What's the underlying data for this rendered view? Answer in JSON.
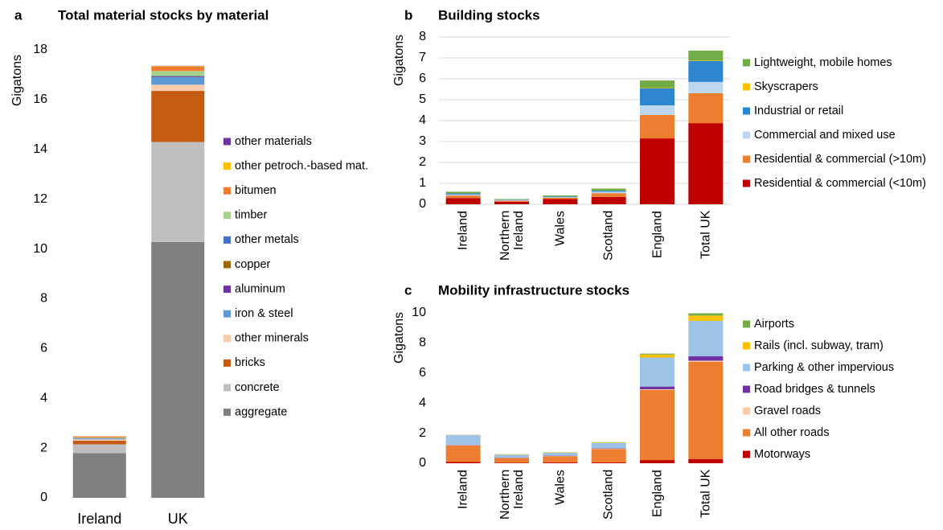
{
  "chart_data": [
    {
      "type": "stacked_bar",
      "panel": "a",
      "title": "Total material stocks by material",
      "y_label": "Gigatons",
      "categories": [
        "Ireland",
        "UK"
      ],
      "series": [
        {
          "name": "aggregate",
          "color": "#7f7f7f",
          "values": [
            1.8,
            10.28
          ]
        },
        {
          "name": "concrete",
          "color": "#bfbfbf",
          "values": [
            0.35,
            4.02
          ]
        },
        {
          "name": "bricks",
          "color": "#c55a11",
          "values": [
            0.15,
            2.05
          ]
        },
        {
          "name": "other minerals",
          "color": "#f8cbad",
          "values": [
            0.05,
            0.25
          ]
        },
        {
          "name": "iron & steel",
          "color": "#5b9bd5",
          "values": [
            0.03,
            0.3
          ]
        },
        {
          "name": "aluminum",
          "color": "#7030a0",
          "values": [
            0,
            0.02
          ]
        },
        {
          "name": "copper",
          "color": "#9c6500",
          "values": [
            0,
            0.01
          ]
        },
        {
          "name": "other metals",
          "color": "#4472c4",
          "values": [
            0.01,
            0.02
          ]
        },
        {
          "name": "timber",
          "color": "#a9d18e",
          "values": [
            0.03,
            0.2
          ]
        },
        {
          "name": "bitumen",
          "color": "#ed7d31",
          "values": [
            0.05,
            0.18
          ]
        },
        {
          "name": "other petroch.-based mat.",
          "color": "#ffc000",
          "values": [
            0,
            0.02
          ]
        },
        {
          "name": "other materials",
          "color": "#7030a0",
          "values": [
            0,
            0.01
          ]
        }
      ],
      "ylim": [
        0,
        18
      ],
      "yticks": [
        0,
        2,
        4,
        6,
        8,
        10,
        12,
        14,
        16,
        18
      ],
      "grid": false
    },
    {
      "type": "stacked_bar",
      "panel": "b",
      "title": "Building stocks",
      "y_label": "Gigatons",
      "categories": [
        "Ireland",
        "Northern Ireland",
        "Wales",
        "Scotland",
        "England",
        "Total UK"
      ],
      "series": [
        {
          "name": "Residential & commercial (<10m)",
          "color": "#c00000",
          "values": [
            0.3,
            0.12,
            0.25,
            0.35,
            3.15,
            3.88
          ]
        },
        {
          "name": "Residential & commercial (>10m)",
          "color": "#ed7d31",
          "values": [
            0.12,
            0.05,
            0.06,
            0.18,
            1.12,
            1.43
          ]
        },
        {
          "name": "Commercial and mixed use",
          "color": "#bdd7ee",
          "values": [
            0.05,
            0.03,
            0.03,
            0.07,
            0.46,
            0.54
          ]
        },
        {
          "name": "Industrial or retail",
          "color": "#2e86d0",
          "values": [
            0.05,
            0.02,
            0.03,
            0.05,
            0.81,
            1.0
          ]
        },
        {
          "name": "Skyscrapers",
          "color": "#ffc000",
          "values": [
            0,
            0,
            0,
            0,
            0.02,
            0.02
          ]
        },
        {
          "name": "Lightweight, mobile homes",
          "color": "#70ad47",
          "values": [
            0.08,
            0.03,
            0.05,
            0.1,
            0.36,
            0.48
          ]
        }
      ],
      "ylim": [
        0,
        8
      ],
      "yticks": [
        0,
        1,
        2,
        3,
        4,
        5,
        6,
        7,
        8
      ],
      "grid": true
    },
    {
      "type": "stacked_bar",
      "panel": "c",
      "title": "Mobility infrastructure stocks",
      "y_label": "Gigatons",
      "categories": [
        "Ireland",
        "Northern Ireland",
        "Wales",
        "Scotland",
        "England",
        "Total UK"
      ],
      "series": [
        {
          "name": "Motorways",
          "color": "#c00000",
          "values": [
            0.08,
            0.03,
            0.05,
            0.05,
            0.21,
            0.28
          ]
        },
        {
          "name": "All other roads",
          "color": "#ed7d31",
          "values": [
            1.1,
            0.32,
            0.42,
            0.9,
            4.66,
            6.46
          ]
        },
        {
          "name": "Gravel roads",
          "color": "#f8cbad",
          "values": [
            0.02,
            0.01,
            0.01,
            0.02,
            0.05,
            0.08
          ]
        },
        {
          "name": "Road bridges & tunnels",
          "color": "#7030a0",
          "values": [
            0.02,
            0.01,
            0.02,
            0.03,
            0.18,
            0.29
          ]
        },
        {
          "name": "Parking & other impervious",
          "color": "#9dc3e6",
          "values": [
            0.65,
            0.2,
            0.2,
            0.35,
            1.93,
            2.36
          ]
        },
        {
          "name": "Rails (incl. subway, tram)",
          "color": "#ffc000",
          "values": [
            0.01,
            0.02,
            0.02,
            0.03,
            0.2,
            0.35
          ]
        },
        {
          "name": "Airports",
          "color": "#70ad47",
          "values": [
            0.01,
            0.01,
            0.01,
            0.02,
            0.06,
            0.15
          ]
        }
      ],
      "ylim": [
        0,
        10
      ],
      "yticks": [
        0,
        2,
        4,
        6,
        8,
        10
      ],
      "grid": false
    }
  ]
}
